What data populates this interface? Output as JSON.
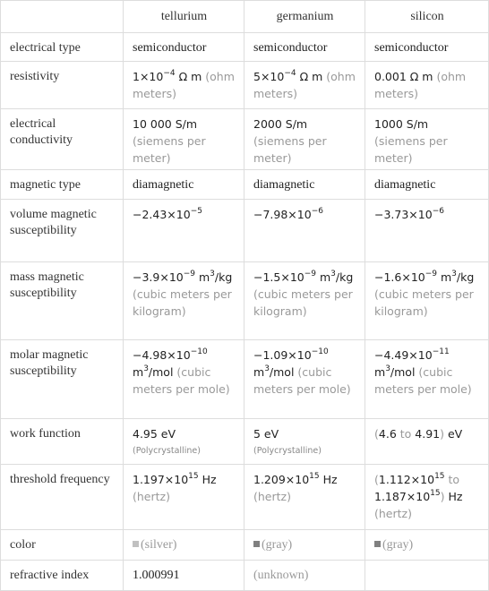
{
  "table": {
    "columns": [
      "tellurium",
      "germanium",
      "silicon"
    ],
    "rows": [
      {
        "label": "electrical type",
        "cells": [
          [
            "semiconductor"
          ],
          [
            "semiconductor"
          ],
          [
            "semiconductor"
          ]
        ]
      },
      {
        "label": "resistivity",
        "cells": [
          [
            {
              "n": "1×10"
            },
            {
              "sup": "−4"
            },
            {
              "n": " Ω m "
            },
            {
              "g": "(ohm meters)"
            }
          ],
          [
            {
              "n": "5×10"
            },
            {
              "sup": "−4"
            },
            {
              "n": " Ω m "
            },
            {
              "g": "(ohm meters)"
            }
          ],
          [
            {
              "n": "0.001 Ω m "
            },
            {
              "g": "(ohm meters)"
            }
          ]
        ]
      },
      {
        "label": "electrical conductivity",
        "cells": [
          [
            {
              "n": "10 000 S/m "
            },
            {
              "g": "(siemens per meter)"
            }
          ],
          [
            {
              "n": "2000 S/m "
            },
            {
              "g": "(siemens per meter)"
            }
          ],
          [
            {
              "n": "1000 S/m "
            },
            {
              "g": "(siemens per meter)"
            }
          ]
        ]
      },
      {
        "label": "magnetic type",
        "cells": [
          [
            "diamagnetic"
          ],
          [
            "diamagnetic"
          ],
          [
            "diamagnetic"
          ]
        ]
      },
      {
        "label": "volume magnetic susceptibility",
        "cells": [
          [
            {
              "n": "−2.43×10"
            },
            {
              "sup": "−5"
            }
          ],
          [
            {
              "n": "−7.98×10"
            },
            {
              "sup": "−6"
            }
          ],
          [
            {
              "n": "−3.73×10"
            },
            {
              "sup": "−6"
            }
          ]
        ]
      },
      {
        "label": "mass magnetic susceptibility",
        "cells": [
          [
            {
              "n": "−3.9×10"
            },
            {
              "sup": "−9"
            },
            {
              "n": " m"
            },
            {
              "sup": "3"
            },
            {
              "n": "/kg "
            },
            {
              "g": "(cubic meters per kilogram)"
            }
          ],
          [
            {
              "n": "−1.5×10"
            },
            {
              "sup": "−9"
            },
            {
              "n": " m"
            },
            {
              "sup": "3"
            },
            {
              "n": "/kg "
            },
            {
              "g": "(cubic meters per kilogram)"
            }
          ],
          [
            {
              "n": "−1.6×10"
            },
            {
              "sup": "−9"
            },
            {
              "n": " m"
            },
            {
              "sup": "3"
            },
            {
              "n": "/kg "
            },
            {
              "g": "(cubic meters per kilogram)"
            }
          ]
        ]
      },
      {
        "label": "molar magnetic susceptibility",
        "cells": [
          [
            {
              "n": "−4.98×10"
            },
            {
              "sup": "−10"
            },
            {
              "n": " m"
            },
            {
              "sup": "3"
            },
            {
              "n": "/mol "
            },
            {
              "g": "(cubic meters per mole)"
            }
          ],
          [
            {
              "n": "−1.09×10"
            },
            {
              "sup": "−10"
            },
            {
              "n": " m"
            },
            {
              "sup": "3"
            },
            {
              "n": "/mol "
            },
            {
              "g": "(cubic meters per mole)"
            }
          ],
          [
            {
              "n": "−4.49×10"
            },
            {
              "sup": "−11"
            },
            {
              "n": " m"
            },
            {
              "sup": "3"
            },
            {
              "n": "/mol "
            },
            {
              "g": "(cubic meters per mole)"
            }
          ]
        ]
      },
      {
        "label": "work function",
        "cells": [
          [
            {
              "n": "4.95 eV"
            },
            {
              "small": "(Polycrystalline)"
            }
          ],
          [
            {
              "n": "5 eV"
            },
            {
              "small": "(Polycrystalline)"
            }
          ],
          [
            {
              "g": "("
            },
            {
              "n": "4.6"
            },
            {
              "g": " to "
            },
            {
              "n": "4.91"
            },
            {
              "g": ")"
            },
            {
              "n": " eV"
            }
          ]
        ]
      },
      {
        "label": "threshold frequency",
        "cells": [
          [
            {
              "n": "1.197×10"
            },
            {
              "sup": "15"
            },
            {
              "n": " Hz "
            },
            {
              "g": "(hertz)"
            }
          ],
          [
            {
              "n": "1.209×10"
            },
            {
              "sup": "15"
            },
            {
              "n": " Hz "
            },
            {
              "g": "(hertz)"
            }
          ],
          [
            {
              "g": "("
            },
            {
              "n": "1.112×10"
            },
            {
              "sup": "15"
            },
            {
              "g": " to "
            },
            {
              "n": "1.187×10"
            },
            {
              "sup": "15"
            },
            {
              "g": ")"
            },
            {
              "n": " Hz "
            },
            {
              "g": "(hertz)"
            }
          ]
        ]
      },
      {
        "label": "color",
        "cells": [
          [
            {
              "swatch": "#c0c0c0"
            },
            {
              "gs": "(silver)"
            }
          ],
          [
            {
              "swatch": "#808080"
            },
            {
              "gs": "(gray)"
            }
          ],
          [
            {
              "swatch": "#808080"
            },
            {
              "gs": "(gray)"
            }
          ]
        ]
      },
      {
        "label": "refractive index",
        "cells": [
          [
            "1.000991"
          ],
          [
            {
              "gs": "(unknown)"
            }
          ],
          []
        ]
      }
    ]
  }
}
